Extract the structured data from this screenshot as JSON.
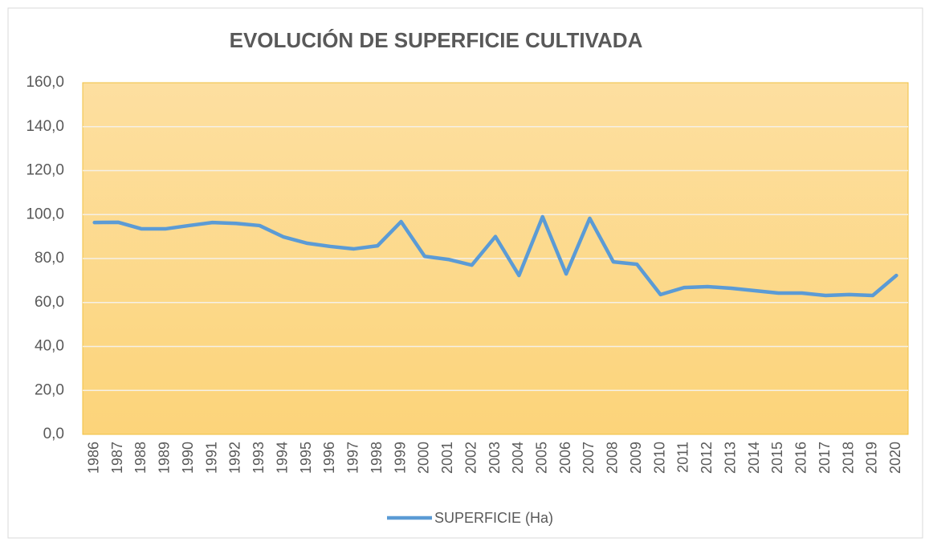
{
  "chart_data": {
    "type": "line",
    "title": "EVOLUCIÓN DE SUPERFICIE CULTIVADA",
    "categories": [
      "1986",
      "1987",
      "1988",
      "1989",
      "1990",
      "1991",
      "1992",
      "1993",
      "1994",
      "1995",
      "1996",
      "1997",
      "1998",
      "1999",
      "2000",
      "2001",
      "2002",
      "2003",
      "2004",
      "2005",
      "2006",
      "2007",
      "2008",
      "2009",
      "2010",
      "2011",
      "2012",
      "2013",
      "2014",
      "2015",
      "2016",
      "2017",
      "2018",
      "2019",
      "2020"
    ],
    "series": [
      {
        "name": "SUPERFICIE (Ha)",
        "color": "#5b9bd5",
        "values": [
          96.4,
          96.5,
          93.5,
          93.5,
          95.0,
          96.4,
          96.0,
          95.0,
          89.9,
          87.0,
          85.5,
          84.4,
          85.8,
          96.8,
          81.0,
          79.6,
          77.0,
          90.0,
          72.3,
          99.0,
          73.0,
          98.3,
          78.5,
          77.4,
          63.6,
          66.8,
          67.2,
          66.5,
          65.4,
          64.3,
          64.3,
          63.2,
          63.6,
          63.2,
          72.3
        ]
      }
    ],
    "ylim": [
      0,
      160
    ],
    "yticks": [
      {
        "value": 0,
        "label": "0,0"
      },
      {
        "value": 20,
        "label": "20,0"
      },
      {
        "value": 40,
        "label": "40,0"
      },
      {
        "value": 60,
        "label": "60,0"
      },
      {
        "value": 80,
        "label": "80,0"
      },
      {
        "value": 100,
        "label": "100,0"
      },
      {
        "value": 120,
        "label": "120,0"
      },
      {
        "value": 140,
        "label": "140,0"
      },
      {
        "value": 160,
        "label": "160,0"
      }
    ],
    "grid": true,
    "legend": "bottom"
  }
}
